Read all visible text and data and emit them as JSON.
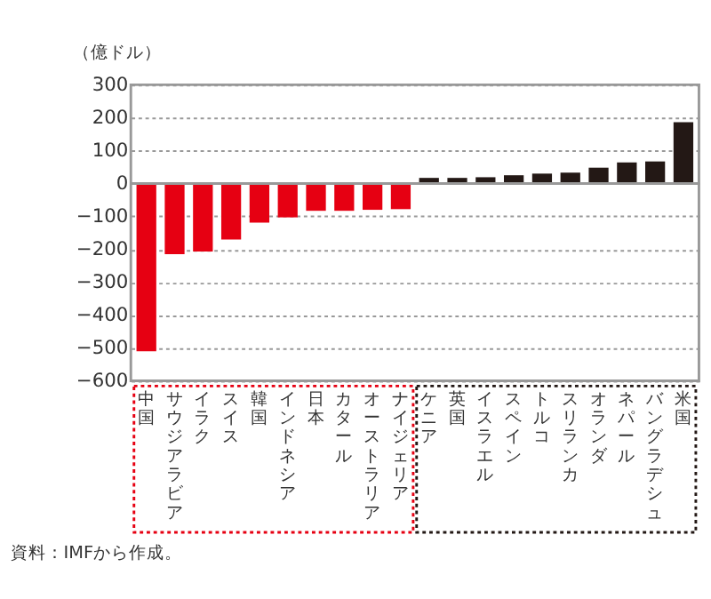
{
  "chart_data": {
    "type": "bar",
    "ylabel": "（億ドル）",
    "categories": [
      "中国",
      "サウジアラビア",
      "イラク",
      "スイス",
      "韓国",
      "インドネシア",
      "日本",
      "カタール",
      "オーストラリア",
      "ナイジェリア",
      "ケニア",
      "英国",
      "イスラエル",
      "スペイン",
      "トルコ",
      "スリランカ",
      "オランダ",
      "ネパール",
      "バングラデシュ",
      "米国"
    ],
    "values": [
      -510,
      -215,
      -207,
      -170,
      -119,
      -103,
      -83,
      -83,
      -80,
      -78,
      17,
      17,
      19,
      25,
      30,
      33,
      48,
      64,
      67,
      186
    ],
    "colors": [
      "#e60012",
      "#e60012",
      "#e60012",
      "#e60012",
      "#e60012",
      "#e60012",
      "#e60012",
      "#e60012",
      "#e60012",
      "#e60012",
      "#231815",
      "#231815",
      "#231815",
      "#231815",
      "#231815",
      "#231815",
      "#231815",
      "#231815",
      "#231815",
      "#231815"
    ],
    "ylim": [
      -600,
      300
    ],
    "yticks": [
      -600,
      -500,
      -400,
      -300,
      -200,
      -100,
      0,
      100,
      200,
      300
    ],
    "grid": "y",
    "ref_lines": [
      {
        "axis": "y",
        "value": 0,
        "color": "#999999"
      }
    ],
    "annotations": [
      "資料：IMFから作成。"
    ]
  }
}
